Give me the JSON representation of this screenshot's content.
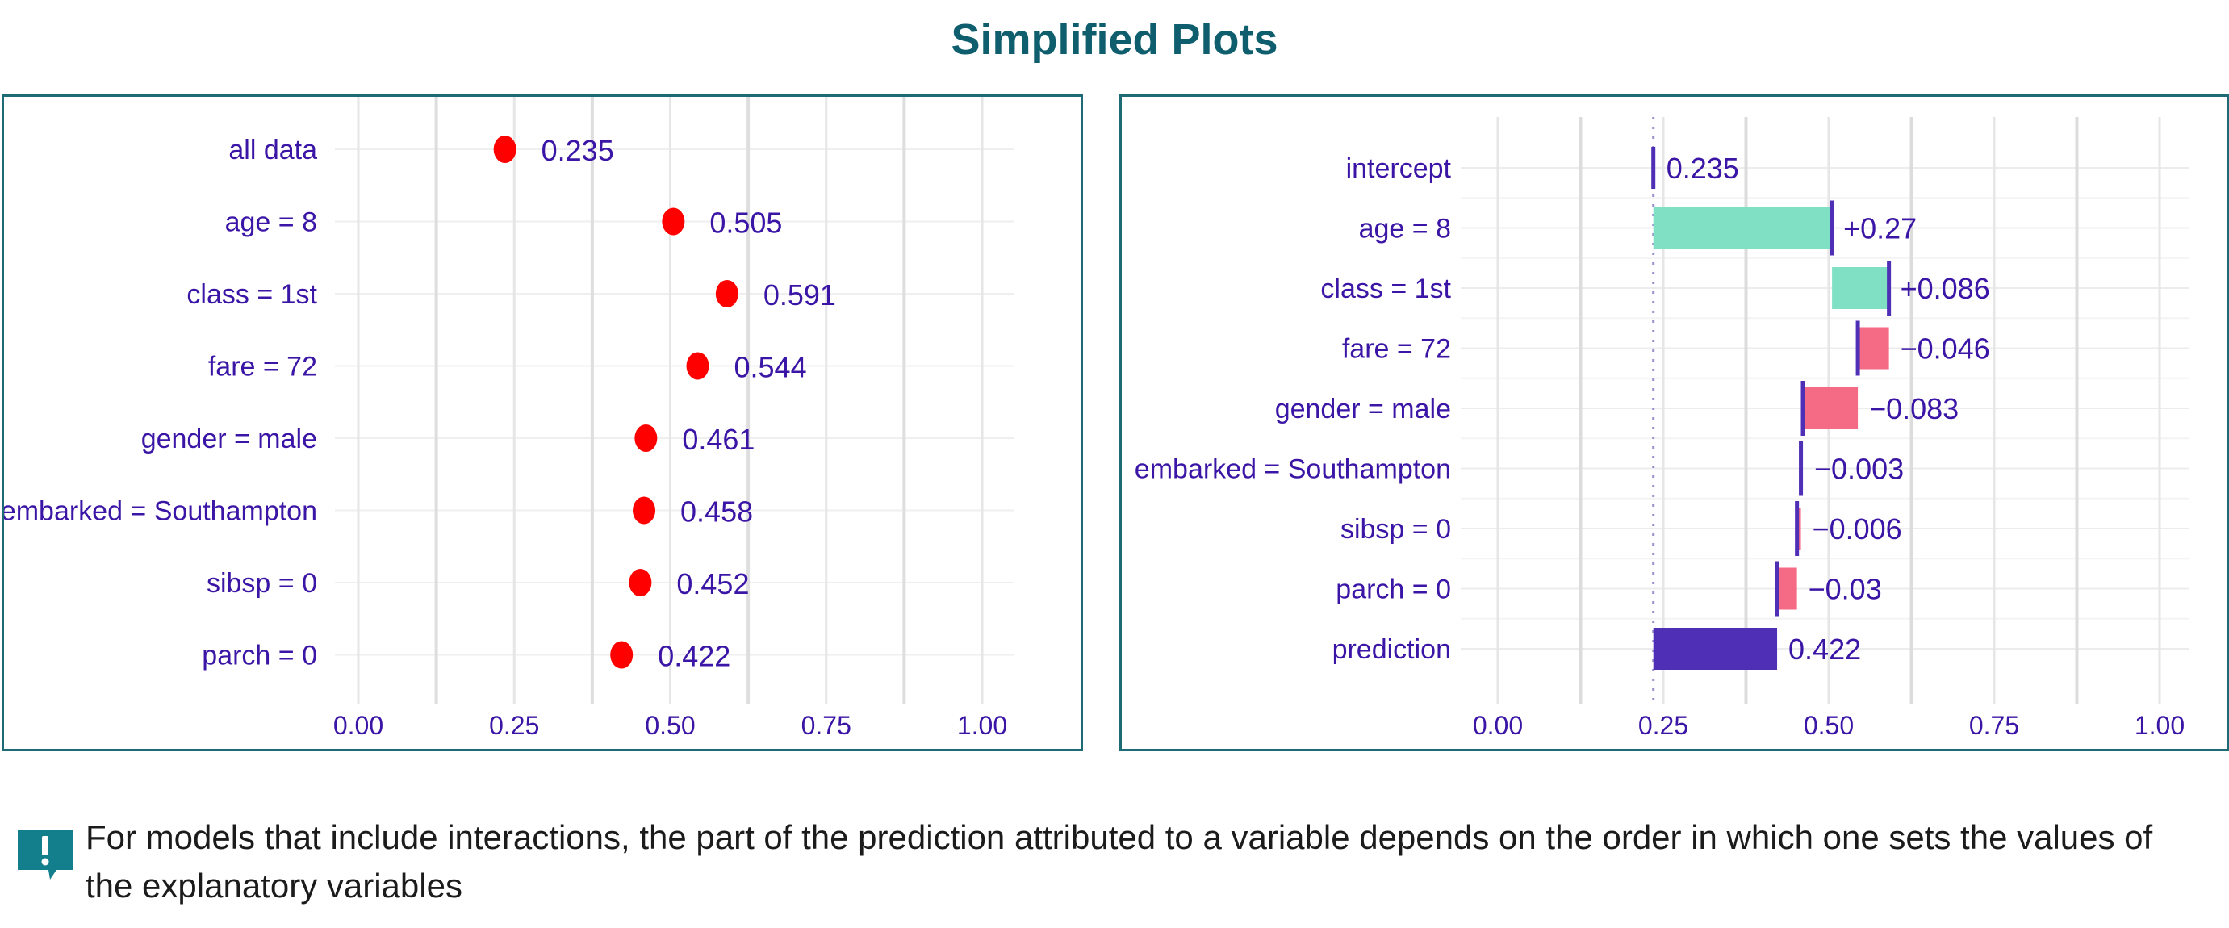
{
  "page": {
    "title": "Simplified Plots"
  },
  "colors": {
    "title": "#0f5e6e",
    "panel_border": "#1d6b74",
    "text": "#3b16a6",
    "dot": "#ff0000",
    "positive": "#80e0c4",
    "negative": "#f56a84",
    "prediction": "#4f2fb5",
    "grid": "#e4e4e4",
    "note_icon": "#137e8c"
  },
  "chart_data": [
    {
      "type": "scatter",
      "subtype": "dot-plot",
      "title": "",
      "xlabel": "",
      "ylabel": "",
      "xlim": [
        0,
        1.05
      ],
      "xticks": [
        "0.00",
        "0.25",
        "0.50",
        "0.75",
        "1.00"
      ],
      "grid": true,
      "legend": "none",
      "categories": [
        "all data",
        "age = 8",
        "class = 1st",
        "fare = 72",
        "gender = male",
        "embarked = Southampton",
        "sibsp = 0",
        "parch = 0"
      ],
      "values": [
        0.235,
        0.505,
        0.591,
        0.544,
        0.461,
        0.458,
        0.452,
        0.422
      ],
      "value_labels": [
        "0.235",
        "0.505",
        "0.591",
        "0.544",
        "0.461",
        "0.458",
        "0.452",
        "0.422"
      ]
    },
    {
      "type": "bar",
      "subtype": "waterfall",
      "title": "",
      "xlabel": "",
      "ylabel": "",
      "xlim": [
        0,
        1.05
      ],
      "xticks": [
        "0.00",
        "0.25",
        "0.50",
        "0.75",
        "1.00"
      ],
      "grid": true,
      "legend": "none",
      "intercept_line": 0.235,
      "categories": [
        "intercept",
        "age = 8",
        "class = 1st",
        "fare = 72",
        "gender = male",
        "embarked = Southampton",
        "sibsp = 0",
        "parch = 0",
        "prediction"
      ],
      "contributions": [
        0.235,
        0.27,
        0.086,
        -0.046,
        -0.083,
        -0.003,
        -0.006,
        -0.03,
        0.422
      ],
      "cumulative": [
        0.235,
        0.505,
        0.591,
        0.544,
        0.461,
        0.458,
        0.452,
        0.422,
        0.422
      ],
      "value_labels": [
        "0.235",
        "+0.27",
        "+0.086",
        "−0.046",
        "−0.083",
        "−0.003",
        "−0.006",
        "−0.03",
        "0.422"
      ]
    }
  ],
  "note": {
    "icon": "exclamation-speech-bubble-icon",
    "text": "For models that include interactions, the part of the prediction attributed to a variable depends on the order in which one sets the values of the explanatory variables"
  }
}
